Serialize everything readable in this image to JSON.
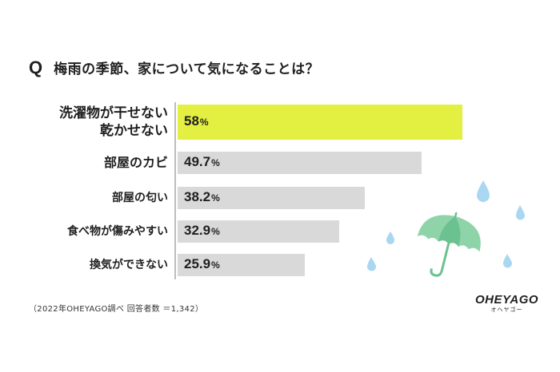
{
  "question": {
    "mark": "Q",
    "text": "梅雨の季節、家について気になることは？"
  },
  "chart_data": {
    "type": "bar",
    "orientation": "horizontal",
    "title": "梅雨の季節、家について気になることは？",
    "categories": [
      [
        "洗濯物が干せない",
        "乾かせない"
      ],
      [
        "部屋のカビ"
      ],
      [
        "部屋の匂い"
      ],
      [
        "食べ物が傷みやすい"
      ],
      [
        "換気ができない"
      ]
    ],
    "values": [
      58,
      49.7,
      38.2,
      32.9,
      25.9
    ],
    "value_labels": [
      "58",
      "49.7",
      "38.2",
      "32.9",
      "25.9"
    ],
    "unit": "%",
    "highlight_index": 0,
    "colors": {
      "highlight": "#e3ef41",
      "default": "#d9d9d9"
    },
    "xlim": [
      0,
      65
    ],
    "grid": false,
    "legend": "none"
  },
  "footnote": "（2022年OHEYAGO調べ 回答者数 ＝1,342）",
  "brand": {
    "name": "OHEYAGO",
    "sub": "オヘヤゴー"
  },
  "decor_colors": {
    "umbrella": "#8fd4a9",
    "umbrella_dark": "#6cc191",
    "drop": "#a9d7f2"
  }
}
